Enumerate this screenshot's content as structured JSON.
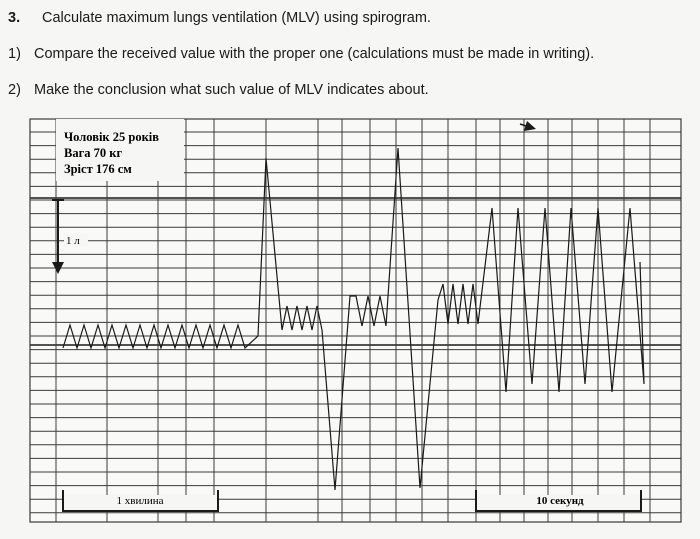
{
  "question": {
    "number": "3.",
    "text": "Calculate maximum lungs ventilation (MLV) using spirogram.",
    "items": [
      {
        "num": "1)",
        "text": "Compare the received value with the proper one (calculations must be made in writing)."
      },
      {
        "num": "2)",
        "text": "Make the conclusion what such value of MLV indicates about."
      }
    ]
  },
  "spirogram": {
    "subject_lines": [
      "Чоловік 25 років",
      "Вага 70 кг",
      "Зріст 176 см"
    ],
    "volume_scale_label": "1 л",
    "time_scale_minute_label": "1 хвилина",
    "time_scale_seconds_label": "10 секунд",
    "trace_color": "#1a1a1a",
    "grid_color": "#3a3a3a"
  }
}
